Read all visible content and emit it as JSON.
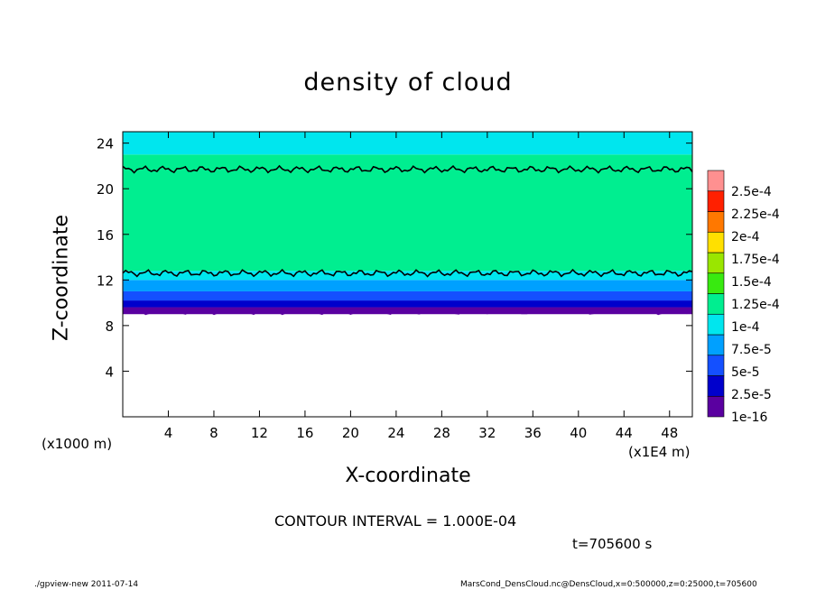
{
  "chart_data": {
    "type": "heatmap",
    "title": "density of cloud",
    "xlabel": "X-coordinate",
    "ylabel": "Z-coordinate",
    "x_unit_left": "(x1000 m)",
    "x_unit_right": "(x1E4 m)",
    "xlim": [
      0,
      50
    ],
    "ylim": [
      0,
      25
    ],
    "x_ticks": [
      "4",
      "8",
      "12",
      "16",
      "20",
      "24",
      "28",
      "32",
      "36",
      "40",
      "44",
      "48"
    ],
    "y_ticks": [
      "4",
      "8",
      "12",
      "16",
      "20",
      "24"
    ],
    "colorbar": {
      "labels": [
        "1e-16",
        "2.5e-5",
        "5e-5",
        "7.5e-5",
        "1e-4",
        "1.25e-4",
        "1.5e-4",
        "1.75e-4",
        "2e-4",
        "2.25e-4",
        "2.5e-4"
      ],
      "colors": [
        "#5a00a0",
        "#0000cc",
        "#1450ff",
        "#00a0ff",
        "#00e6ee",
        "#00ee90",
        "#38ea10",
        "#9ae600",
        "#ffe000",
        "#ff7800",
        "#ff2000",
        "#ff9090"
      ]
    },
    "bands": [
      {
        "z_from": 9.0,
        "z_to": 9.6,
        "color": "#5a00a0"
      },
      {
        "z_from": 9.6,
        "z_to": 10.2,
        "color": "#0000cc"
      },
      {
        "z_from": 10.2,
        "z_to": 11.0,
        "color": "#1450ff"
      },
      {
        "z_from": 11.0,
        "z_to": 12.0,
        "color": "#00a0ff"
      },
      {
        "z_from": 12.0,
        "z_to": 12.8,
        "color": "#00e6ee"
      },
      {
        "z_from": 12.8,
        "z_to": 21.6,
        "color": "#00ee90"
      },
      {
        "z_from": 21.6,
        "z_to": 23.0,
        "color": "#00ee90"
      },
      {
        "z_from": 23.0,
        "z_to": 25.0,
        "color": "#00e6ee"
      }
    ],
    "contour_lines_z": [
      12.6,
      21.7
    ],
    "contour_interval": "CONTOUR INTERVAL = 1.000E-04"
  },
  "time_label": "t=705600 s",
  "footer": {
    "left": "./gpview-new   2011-07-14",
    "right": "MarsCond_DensCloud.nc@DensCloud,x=0:500000,z=0:25000,t=705600"
  }
}
